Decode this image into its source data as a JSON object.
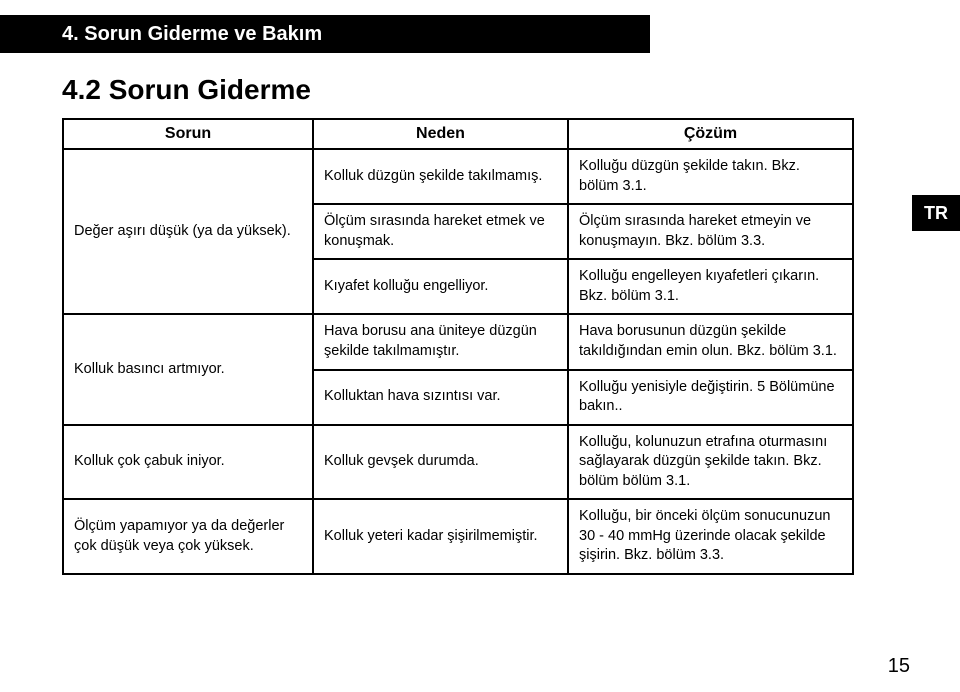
{
  "header": {
    "title": "4. Sorun Giderme ve Bakım"
  },
  "section": {
    "title": "4.2 Sorun Giderme"
  },
  "lang_tab": "TR",
  "page_number": "15",
  "table": {
    "head": {
      "c1": "Sorun",
      "c2": "Neden",
      "c3": "Çözüm"
    },
    "rows": {
      "r1": {
        "sorun": "Değer aşırı düşük (ya da yüksek).",
        "n1": "Kolluk düzgün şekilde takılmamış.",
        "c1": "Kolluğu düzgün şekilde takın. Bkz. bölüm 3.1.",
        "n2": "Ölçüm sırasında hareket etmek ve konuşmak.",
        "c2": "Ölçüm sırasında hareket etmeyin ve konuşmayın. Bkz. bölüm 3.3.",
        "n3": "Kıyafet kolluğu engelliyor.",
        "c3": "Kolluğu engelleyen kıyafetleri çıkarın. Bkz. bölüm 3.1."
      },
      "r2": {
        "sorun": "Kolluk basıncı artmıyor.",
        "n1": "Hava borusu ana üniteye düzgün şekilde takılmamıştır.",
        "c1": "Hava borusunun düzgün şekilde takıldığından emin olun. Bkz. bölüm 3.1.",
        "n2": "Kolluktan hava sızıntısı var.",
        "c2": "Kolluğu yenisiyle değiştirin. 5 Bölümüne bakın.."
      },
      "r3": {
        "sorun": "Kolluk çok çabuk iniyor.",
        "n1": "Kolluk gevşek durumda.",
        "c1": "Kolluğu, kolunuzun etrafına oturmasını sağlayarak düzgün şekilde takın. Bkz. bölüm bölüm 3.1."
      },
      "r4": {
        "sorun": "Ölçüm yapamıyor ya da değerler çok düşük veya çok yüksek.",
        "n1": "Kolluk yeteri kadar şişirilmemiştir.",
        "c1": "Kolluğu, bir önceki ölçüm sonucunuzun 30 - 40 mmHg üzerinde olacak şekilde şişirin. Bkz. bölüm 3.3."
      }
    }
  }
}
